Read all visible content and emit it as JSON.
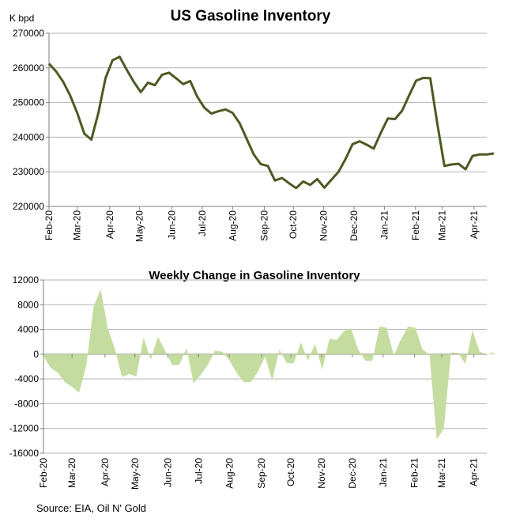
{
  "chart_data": [
    {
      "type": "line",
      "title": "US Gasoline Inventory",
      "ylabel": "K bpd",
      "xlabel": "",
      "ylim": [
        220000,
        270000
      ],
      "yticks": [
        220000,
        230000,
        240000,
        250000,
        260000,
        270000
      ],
      "ytick_labels": [
        "220000",
        "230000",
        "240000",
        "250000",
        "260000",
        "270000"
      ],
      "xlim": [
        0,
        62
      ],
      "xtick_labels": [
        "Feb-20",
        "Mar-20",
        "Apr-20",
        "May-20",
        "Jun-20",
        "Jul-20",
        "Aug-20",
        "Sep-20",
        "Oct-20",
        "Nov-20",
        "Dec-20",
        "Jan-21",
        "Feb-21",
        "Mar-21",
        "Apr-21"
      ],
      "xtick_weeks": [
        0,
        4,
        8.6,
        12.8,
        17.4,
        21.7,
        26,
        30.5,
        34.6,
        38.9,
        43.2,
        47.5,
        51.9,
        55.7,
        60.2
      ],
      "grid": true,
      "color": "#4b5a23",
      "series": [
        {
          "name": "US Gasoline Inventory",
          "values": [
            261200,
            259000,
            256000,
            252000,
            247000,
            241000,
            239300,
            247000,
            257000,
            262200,
            263200,
            259500,
            256000,
            253000,
            255700,
            255000,
            258000,
            258600,
            257000,
            255300,
            256200,
            251700,
            248500,
            246800,
            247500,
            248000,
            247000,
            244000,
            239500,
            235000,
            232200,
            231700,
            227500,
            228200,
            226700,
            225300,
            227200,
            226200,
            227900,
            225400,
            227700,
            230000,
            233700,
            238000,
            238800,
            237800,
            236700,
            241300,
            245400,
            245200,
            247600,
            252000,
            256300,
            257100,
            257000,
            243800,
            231700,
            232100,
            232300,
            230700,
            234600,
            235000,
            235000,
            235300
          ]
        }
      ]
    },
    {
      "type": "area",
      "title": "Weekly Change in Gasoline Inventory",
      "xlabel": "",
      "ylabel": "",
      "ylim": [
        -16000,
        12000
      ],
      "yticks": [
        -16000,
        -12000,
        -8000,
        -4000,
        0,
        4000,
        8000,
        12000
      ],
      "ytick_labels": [
        "-16000",
        "-12000",
        "-8000",
        "-4000",
        "0",
        "4000",
        "8000",
        "12000"
      ],
      "xlim": [
        0,
        62
      ],
      "xtick_labels": [
        "Feb-20",
        "Mar-20",
        "Apr-20",
        "May-20",
        "Jun-20",
        "Jul-20",
        "Aug-20",
        "Sep-20",
        "Oct-20",
        "Nov-20",
        "Dec-20",
        "Jan-21",
        "Feb-21",
        "Mar-21",
        "Apr-21"
      ],
      "xtick_weeks": [
        0,
        4,
        8.6,
        12.8,
        17.4,
        21.7,
        26,
        30.5,
        34.6,
        38.9,
        43.2,
        47.5,
        51.9,
        55.7,
        60.2
      ],
      "grid": true,
      "color": "#c5dca0",
      "series": [
        {
          "name": "Weekly Change",
          "values": [
            -300,
            -2200,
            -3000,
            -4500,
            -5300,
            -6200,
            -1700,
            7600,
            10500,
            4200,
            800,
            -3700,
            -3200,
            -3600,
            2700,
            -900,
            2800,
            600,
            -1800,
            -1700,
            1000,
            -4700,
            -3300,
            -1700,
            600,
            400,
            -1000,
            -3000,
            -4500,
            -4500,
            -2800,
            -400,
            -4200,
            700,
            -1400,
            -1500,
            1900,
            -1000,
            1700,
            -2500,
            2500,
            2300,
            3700,
            4200,
            800,
            -1000,
            -1100,
            4500,
            4300,
            -200,
            2400,
            4500,
            4300,
            800,
            -100,
            -13800,
            -12000,
            300,
            200,
            -1600,
            3900,
            400,
            0,
            300
          ]
        }
      ]
    }
  ],
  "source": "Source: EIA, Oil N' Gold"
}
